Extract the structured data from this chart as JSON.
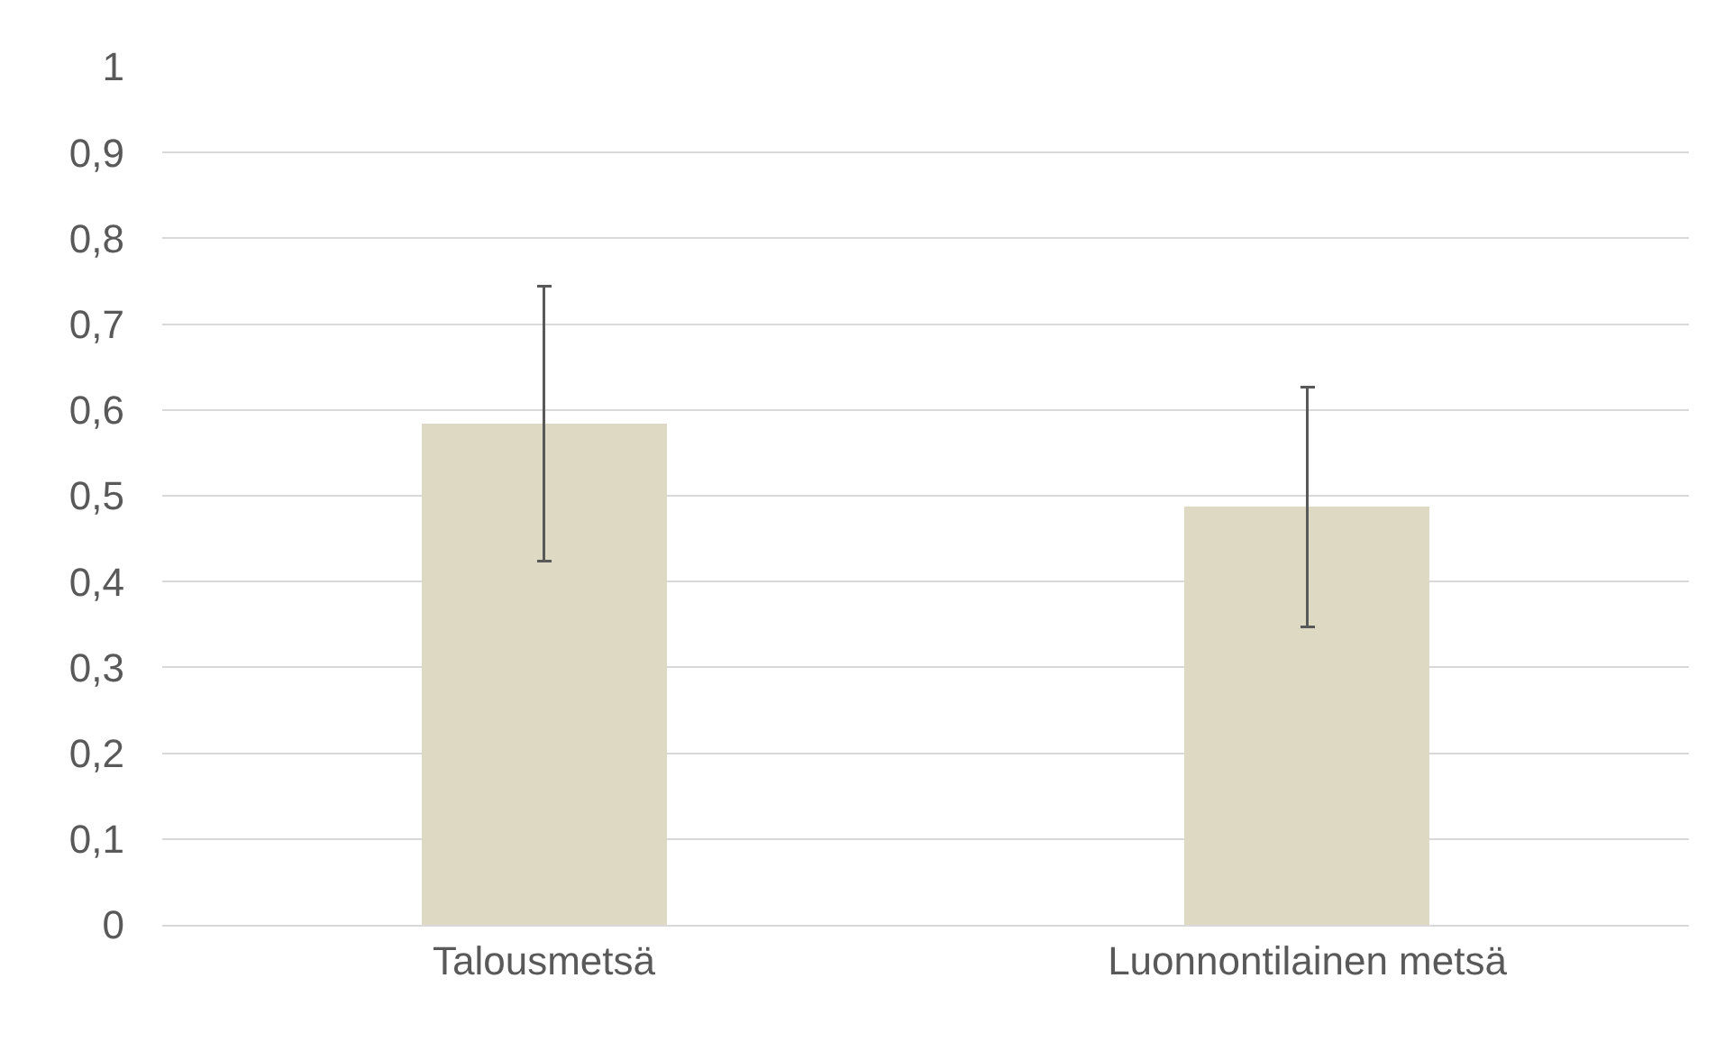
{
  "chart_data": {
    "type": "bar",
    "categories": [
      "Talousmetsä",
      "Luonnontilainen metsä"
    ],
    "values": [
      0.584,
      0.487
    ],
    "errors": [
      0.16,
      0.14
    ],
    "colors": [
      "#ddd9c3",
      "#ddd9c3"
    ],
    "ylim": [
      0,
      1
    ],
    "yticks": [
      {
        "value": 0,
        "label": "0"
      },
      {
        "value": 0.1,
        "label": "0,1"
      },
      {
        "value": 0.2,
        "label": "0,2"
      },
      {
        "value": 0.3,
        "label": "0,3"
      },
      {
        "value": 0.4,
        "label": "0,4"
      },
      {
        "value": 0.5,
        "label": "0,5"
      },
      {
        "value": 0.6,
        "label": "0,6"
      },
      {
        "value": 0.7,
        "label": "0,7"
      },
      {
        "value": 0.8,
        "label": "0,8"
      },
      {
        "value": 0.9,
        "label": "0,9"
      },
      {
        "value": 1,
        "label": "1"
      }
    ],
    "grid": "y"
  }
}
